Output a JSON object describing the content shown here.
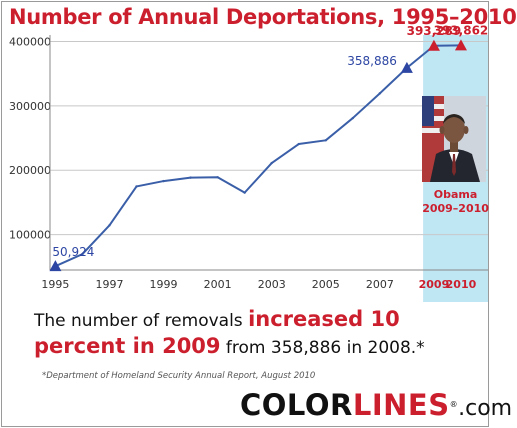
{
  "header": {
    "title": "Number of Annual Deportations, 1995–2010"
  },
  "chart_data": {
    "type": "line",
    "title": "Number of Annual Deportations, 1995–2010",
    "xlabel": "",
    "ylabel": "",
    "x": [
      1995,
      1996,
      1997,
      1998,
      1999,
      2000,
      2001,
      2002,
      2003,
      2004,
      2005,
      2006,
      2007,
      2008,
      2009,
      2010
    ],
    "y": [
      50924,
      69680,
      114432,
      174813,
      183114,
      188467,
      189026,
      165168,
      211098,
      240665,
      246431,
      280974,
      319382,
      358886,
      393289,
      393862
    ],
    "xlim": [
      1994.8,
      2011.0
    ],
    "ylim": [
      45000,
      410000
    ],
    "yticks": [
      100000,
      200000,
      300000,
      400000
    ],
    "ytick_labels": [
      "100000",
      "200000",
      "300000",
      "400000"
    ],
    "xticks": [
      1995,
      1997,
      1999,
      2001,
      2003,
      2005,
      2007,
      2009,
      2010
    ],
    "xtick_labels": [
      "1995",
      "1997",
      "1999",
      "2001",
      "2003",
      "2005",
      "2007",
      "2009",
      "2010"
    ],
    "highlight_years": [
      2009,
      2010
    ],
    "highlight_range": [
      2008.6,
      2011.0
    ],
    "grid": "horizontal",
    "colors": {
      "line": "#3a5fa8",
      "marker_blue": "#2d46a3",
      "marker_red": "#cc1f2e",
      "grid": "#c8c8c8",
      "highlight": "#bfe6f3"
    },
    "annotations": [
      {
        "x": 1995,
        "y": 50924,
        "text": "50,924",
        "color": "blue",
        "marker": "blue"
      },
      {
        "x": 2008,
        "y": 358886,
        "text": "358,886",
        "color": "blue",
        "marker": "blue"
      },
      {
        "x": 2009,
        "y": 393289,
        "text": "393,289",
        "color": "red",
        "marker": "red"
      },
      {
        "x": 2010,
        "y": 393862,
        "text": "393,862",
        "color": "red",
        "marker": "red"
      }
    ],
    "overlay": {
      "label_line1": "Obama",
      "label_line2": "2009–2010"
    }
  },
  "caption": {
    "part1": "The number of removals ",
    "highlight": "increased 10 percent in 2009",
    "part2": " from 358,886 in 2008.*"
  },
  "footnote": "*Department of Homeland Security Annual Report, August 2010",
  "logo": {
    "part1": "COLOR",
    "part2": "LINES",
    "registered": "®",
    "part3": ".com"
  }
}
